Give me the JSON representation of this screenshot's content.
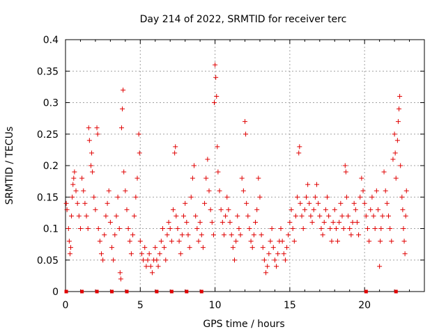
{
  "chart_data": {
    "type": "scatter",
    "title": "Day 214 of 2022, SRMTID for receiver terc",
    "xlabel": "GPS time / hours",
    "ylabel": "SRMTID / TECUs",
    "xlim": [
      0,
      24
    ],
    "ylim": [
      0,
      0.4
    ],
    "x_ticks": [
      "0",
      "5",
      "10",
      "15",
      "20"
    ],
    "x_tick_values": [
      0,
      5,
      10,
      15,
      20
    ],
    "y_ticks": [
      "0",
      "0.05",
      "0.1",
      "0.15",
      "0.2",
      "0.25",
      "0.3",
      "0.35",
      "0.4"
    ],
    "y_tick_values": [
      0,
      0.05,
      0.1,
      0.15,
      0.2,
      0.25,
      0.3,
      0.35,
      0.4
    ],
    "grid": true,
    "marker": "plus",
    "color": "#e00000",
    "zero_markers_x": [
      0.05,
      1.1,
      2.1,
      3.1,
      4.1,
      6.1,
      7.1,
      8.1,
      9.1,
      20.1,
      22.1
    ],
    "series": [
      {
        "values_note_free": true,
        "points": [
          [
            0.05,
            0.14
          ],
          [
            0.1,
            0.13
          ],
          [
            0.2,
            0.1
          ],
          [
            0.25,
            0.08
          ],
          [
            0.3,
            0.06
          ],
          [
            0.35,
            0.07
          ],
          [
            0.4,
            0.12
          ],
          [
            0.45,
            0.15
          ],
          [
            0.5,
            0.17
          ],
          [
            0.55,
            0.18
          ],
          [
            0.6,
            0.19
          ],
          [
            0.7,
            0.16
          ],
          [
            0.8,
            0.14
          ],
          [
            0.9,
            0.12
          ],
          [
            1.0,
            0.1
          ],
          [
            1.1,
            0.18
          ],
          [
            1.2,
            0.16
          ],
          [
            1.3,
            0.14
          ],
          [
            1.4,
            0.12
          ],
          [
            1.5,
            0.1
          ],
          [
            1.55,
            0.26
          ],
          [
            1.6,
            0.24
          ],
          [
            1.7,
            0.2
          ],
          [
            1.75,
            0.22
          ],
          [
            1.8,
            0.19
          ],
          [
            1.9,
            0.15
          ],
          [
            2.0,
            0.13
          ],
          [
            2.1,
            0.26
          ],
          [
            2.15,
            0.25
          ],
          [
            2.2,
            0.1
          ],
          [
            2.3,
            0.08
          ],
          [
            2.4,
            0.06
          ],
          [
            2.5,
            0.05
          ],
          [
            2.6,
            0.09
          ],
          [
            2.7,
            0.12
          ],
          [
            2.8,
            0.14
          ],
          [
            2.9,
            0.16
          ],
          [
            3.0,
            0.11
          ],
          [
            3.1,
            0.07
          ],
          [
            3.2,
            0.05
          ],
          [
            3.3,
            0.09
          ],
          [
            3.4,
            0.12
          ],
          [
            3.5,
            0.15
          ],
          [
            3.6,
            0.1
          ],
          [
            3.65,
            0.03
          ],
          [
            3.7,
            0.02
          ],
          [
            3.75,
            0.26
          ],
          [
            3.8,
            0.29
          ],
          [
            3.85,
            0.32
          ],
          [
            3.9,
            0.19
          ],
          [
            4.0,
            0.16
          ],
          [
            4.1,
            0.13
          ],
          [
            4.2,
            0.1
          ],
          [
            4.3,
            0.08
          ],
          [
            4.4,
            0.06
          ],
          [
            4.5,
            0.09
          ],
          [
            4.6,
            0.12
          ],
          [
            4.7,
            0.15
          ],
          [
            4.8,
            0.18
          ],
          [
            4.9,
            0.25
          ],
          [
            4.95,
            0.22
          ],
          [
            5.0,
            0.08
          ],
          [
            5.1,
            0.06
          ],
          [
            5.2,
            0.05
          ],
          [
            5.3,
            0.07
          ],
          [
            5.4,
            0.04
          ],
          [
            5.5,
            0.05
          ],
          [
            5.6,
            0.06
          ],
          [
            5.7,
            0.04
          ],
          [
            5.8,
            0.03
          ],
          [
            5.9,
            0.05
          ],
          [
            6.0,
            0.07
          ],
          [
            6.1,
            0.05
          ],
          [
            6.2,
            0.04
          ],
          [
            6.3,
            0.06
          ],
          [
            6.4,
            0.08
          ],
          [
            6.5,
            0.1
          ],
          [
            6.6,
            0.07
          ],
          [
            6.7,
            0.05
          ],
          [
            6.8,
            0.09
          ],
          [
            6.9,
            0.11
          ],
          [
            7.0,
            0.1
          ],
          [
            7.1,
            0.08
          ],
          [
            7.2,
            0.13
          ],
          [
            7.3,
            0.22
          ],
          [
            7.35,
            0.23
          ],
          [
            7.4,
            0.12
          ],
          [
            7.5,
            0.1
          ],
          [
            7.6,
            0.08
          ],
          [
            7.7,
            0.06
          ],
          [
            7.8,
            0.09
          ],
          [
            7.9,
            0.12
          ],
          [
            8.0,
            0.14
          ],
          [
            8.1,
            0.11
          ],
          [
            8.2,
            0.09
          ],
          [
            8.3,
            0.07
          ],
          [
            8.4,
            0.15
          ],
          [
            8.5,
            0.18
          ],
          [
            8.6,
            0.2
          ],
          [
            8.7,
            0.12
          ],
          [
            8.8,
            0.1
          ],
          [
            8.9,
            0.08
          ],
          [
            9.0,
            0.11
          ],
          [
            9.1,
            0.09
          ],
          [
            9.2,
            0.07
          ],
          [
            9.3,
            0.14
          ],
          [
            9.4,
            0.18
          ],
          [
            9.5,
            0.21
          ],
          [
            9.6,
            0.16
          ],
          [
            9.7,
            0.13
          ],
          [
            9.8,
            0.11
          ],
          [
            9.9,
            0.09
          ],
          [
            9.95,
            0.3
          ],
          [
            10.0,
            0.36
          ],
          [
            10.05,
            0.34
          ],
          [
            10.1,
            0.31
          ],
          [
            10.15,
            0.23
          ],
          [
            10.2,
            0.19
          ],
          [
            10.3,
            0.16
          ],
          [
            10.4,
            0.13
          ],
          [
            10.5,
            0.11
          ],
          [
            10.6,
            0.09
          ],
          [
            10.7,
            0.12
          ],
          [
            10.8,
            0.15
          ],
          [
            10.9,
            0.13
          ],
          [
            11.0,
            0.11
          ],
          [
            11.1,
            0.09
          ],
          [
            11.2,
            0.07
          ],
          [
            11.3,
            0.05
          ],
          [
            11.4,
            0.08
          ],
          [
            11.5,
            0.12
          ],
          [
            11.6,
            0.1
          ],
          [
            11.7,
            0.09
          ],
          [
            11.8,
            0.18
          ],
          [
            11.9,
            0.16
          ],
          [
            12.0,
            0.27
          ],
          [
            12.05,
            0.25
          ],
          [
            12.1,
            0.14
          ],
          [
            12.2,
            0.12
          ],
          [
            12.3,
            0.1
          ],
          [
            12.4,
            0.08
          ],
          [
            12.5,
            0.07
          ],
          [
            12.6,
            0.09
          ],
          [
            12.7,
            0.11
          ],
          [
            12.8,
            0.13
          ],
          [
            12.9,
            0.18
          ],
          [
            13.0,
            0.15
          ],
          [
            13.1,
            0.09
          ],
          [
            13.2,
            0.07
          ],
          [
            13.3,
            0.05
          ],
          [
            13.4,
            0.03
          ],
          [
            13.5,
            0.04
          ],
          [
            13.6,
            0.06
          ],
          [
            13.7,
            0.08
          ],
          [
            13.8,
            0.1
          ],
          [
            13.9,
            0.07
          ],
          [
            14.0,
            0.05
          ],
          [
            14.1,
            0.04
          ],
          [
            14.2,
            0.06
          ],
          [
            14.3,
            0.08
          ],
          [
            14.4,
            0.1
          ],
          [
            14.5,
            0.08
          ],
          [
            14.6,
            0.06
          ],
          [
            14.7,
            0.05
          ],
          [
            14.8,
            0.07
          ],
          [
            14.9,
            0.09
          ],
          [
            15.0,
            0.11
          ],
          [
            15.1,
            0.13
          ],
          [
            15.2,
            0.1
          ],
          [
            15.3,
            0.08
          ],
          [
            15.4,
            0.12
          ],
          [
            15.5,
            0.15
          ],
          [
            15.6,
            0.22
          ],
          [
            15.65,
            0.23
          ],
          [
            15.7,
            0.14
          ],
          [
            15.8,
            0.12
          ],
          [
            15.9,
            0.1
          ],
          [
            16.0,
            0.13
          ],
          [
            16.1,
            0.15
          ],
          [
            16.2,
            0.17
          ],
          [
            16.3,
            0.14
          ],
          [
            16.4,
            0.12
          ],
          [
            16.5,
            0.11
          ],
          [
            16.6,
            0.13
          ],
          [
            16.7,
            0.15
          ],
          [
            16.8,
            0.17
          ],
          [
            16.9,
            0.14
          ],
          [
            17.0,
            0.12
          ],
          [
            17.1,
            0.1
          ],
          [
            17.2,
            0.09
          ],
          [
            17.3,
            0.11
          ],
          [
            17.4,
            0.13
          ],
          [
            17.5,
            0.15
          ],
          [
            17.6,
            0.12
          ],
          [
            17.7,
            0.1
          ],
          [
            17.8,
            0.08
          ],
          [
            17.9,
            0.11
          ],
          [
            18.0,
            0.13
          ],
          [
            18.1,
            0.1
          ],
          [
            18.2,
            0.08
          ],
          [
            18.3,
            0.11
          ],
          [
            18.4,
            0.14
          ],
          [
            18.5,
            0.12
          ],
          [
            18.6,
            0.1
          ],
          [
            18.7,
            0.2
          ],
          [
            18.75,
            0.19
          ],
          [
            18.8,
            0.15
          ],
          [
            18.9,
            0.12
          ],
          [
            19.0,
            0.1
          ],
          [
            19.1,
            0.09
          ],
          [
            19.2,
            0.11
          ],
          [
            19.3,
            0.14
          ],
          [
            19.4,
            0.13
          ],
          [
            19.5,
            0.11
          ],
          [
            19.6,
            0.09
          ],
          [
            19.7,
            0.15
          ],
          [
            19.8,
            0.18
          ],
          [
            19.9,
            0.16
          ],
          [
            20.0,
            0.14
          ],
          [
            20.1,
            0.12
          ],
          [
            20.2,
            0.1
          ],
          [
            20.3,
            0.08
          ],
          [
            20.4,
            0.13
          ],
          [
            20.5,
            0.15
          ],
          [
            20.6,
            0.12
          ],
          [
            20.7,
            0.1
          ],
          [
            20.8,
            0.16
          ],
          [
            20.9,
            0.13
          ],
          [
            21.0,
            0.04
          ],
          [
            21.05,
            0.08
          ],
          [
            21.1,
            0.1
          ],
          [
            21.2,
            0.12
          ],
          [
            21.3,
            0.19
          ],
          [
            21.4,
            0.16
          ],
          [
            21.5,
            0.14
          ],
          [
            21.6,
            0.12
          ],
          [
            21.7,
            0.1
          ],
          [
            21.8,
            0.08
          ],
          [
            21.9,
            0.21
          ],
          [
            22.0,
            0.25
          ],
          [
            22.05,
            0.22
          ],
          [
            22.1,
            0.18
          ],
          [
            22.2,
            0.24
          ],
          [
            22.25,
            0.27
          ],
          [
            22.3,
            0.29
          ],
          [
            22.35,
            0.31
          ],
          [
            22.4,
            0.2
          ],
          [
            22.5,
            0.15
          ],
          [
            22.55,
            0.13
          ],
          [
            22.6,
            0.1
          ],
          [
            22.65,
            0.08
          ],
          [
            22.7,
            0.06
          ],
          [
            22.75,
            0.12
          ],
          [
            22.8,
            0.16
          ]
        ]
      }
    ]
  }
}
